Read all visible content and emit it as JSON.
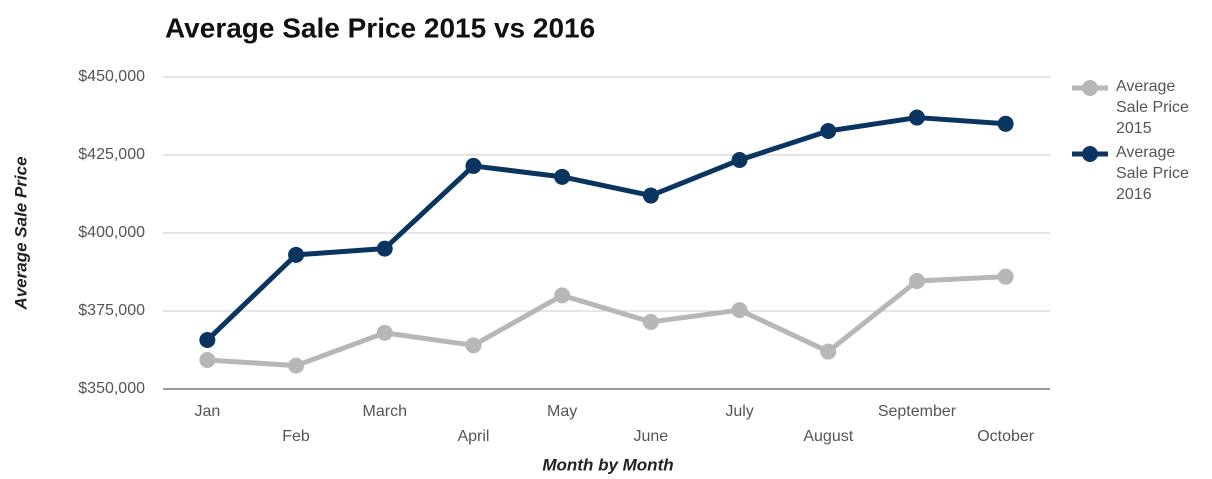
{
  "chart_data": {
    "type": "line",
    "title": "Average Sale Price 2015 vs 2016",
    "x_label": "Month by Month",
    "y_label": "Average Sale Price",
    "categories": [
      "Jan",
      "Feb",
      "March",
      "April",
      "May",
      "June",
      "July",
      "August",
      "September",
      "October"
    ],
    "series": [
      {
        "name": "Average Sale Price 2015",
        "color": "#b7b7b7",
        "values": [
          359300,
          357500,
          368000,
          364000,
          380000,
          371500,
          375300,
          362000,
          384600,
          386000
        ]
      },
      {
        "name": "Average Sale Price 2016",
        "color": "#0b3561",
        "values": [
          365700,
          393000,
          395000,
          421500,
          418000,
          412000,
          423400,
          432700,
          437000,
          435000
        ]
      }
    ],
    "ylim": [
      350000,
      450000
    ],
    "yticks": [
      {
        "value": 350000,
        "label": "$350,000"
      },
      {
        "value": 375000,
        "label": "$375,000"
      },
      {
        "value": 400000,
        "label": "$400,000"
      },
      {
        "value": 425000,
        "label": "$425,000"
      },
      {
        "value": 450000,
        "label": "$450,000"
      }
    ],
    "grid": true,
    "legend": "right"
  }
}
